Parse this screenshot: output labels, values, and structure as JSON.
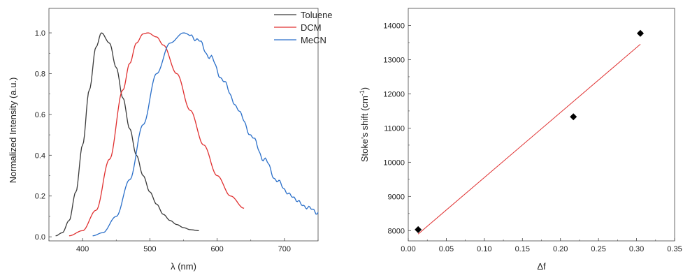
{
  "chart_data": [
    {
      "type": "line",
      "title": "",
      "xlabel": "λ (nm)",
      "ylabel": "Normalized Intensity (a.u.)",
      "xlim": [
        350,
        750
      ],
      "ylim": [
        -0.02,
        1.12
      ],
      "xticks": [
        400,
        500,
        600,
        700
      ],
      "yticks": [
        0.0,
        0.2,
        0.4,
        0.6,
        0.8,
        1.0
      ],
      "legend_position": "top-right",
      "series": [
        {
          "name": "Toluene",
          "color": "#3a3a3a",
          "x": [
            360,
            370,
            380,
            390,
            400,
            410,
            420,
            428,
            440,
            450,
            460,
            470,
            480,
            490,
            500,
            510,
            520,
            530,
            540,
            550,
            560,
            573
          ],
          "y": [
            0.005,
            0.02,
            0.08,
            0.22,
            0.45,
            0.72,
            0.93,
            1.0,
            0.95,
            0.83,
            0.68,
            0.53,
            0.4,
            0.3,
            0.22,
            0.16,
            0.11,
            0.08,
            0.06,
            0.045,
            0.035,
            0.03
          ]
        },
        {
          "name": "DCM",
          "color": "#e03030",
          "x": [
            380,
            400,
            420,
            440,
            460,
            470,
            480,
            490,
            497,
            510,
            520,
            540,
            560,
            580,
            600,
            620,
            640
          ],
          "y": [
            0.005,
            0.03,
            0.13,
            0.38,
            0.72,
            0.85,
            0.95,
            0.995,
            1.0,
            0.98,
            0.94,
            0.8,
            0.62,
            0.45,
            0.3,
            0.2,
            0.14
          ]
        },
        {
          "name": "MeCN",
          "color": "#2a6fc9",
          "x": [
            415,
            430,
            450,
            470,
            490,
            510,
            530,
            550,
            570,
            590,
            610,
            630,
            650,
            670,
            690,
            710,
            730,
            750
          ],
          "y": [
            0.005,
            0.02,
            0.1,
            0.28,
            0.55,
            0.8,
            0.95,
            1.0,
            0.97,
            0.88,
            0.76,
            0.63,
            0.5,
            0.38,
            0.27,
            0.2,
            0.15,
            0.12
          ]
        }
      ]
    },
    {
      "type": "scatter",
      "title": "",
      "xlabel": "Δf",
      "ylabel": "Stoke's shift (cm-1)",
      "xlim": [
        0.0,
        0.35
      ],
      "ylim": [
        7700,
        14500
      ],
      "xticks": [
        "0.00",
        "0.05",
        "0.10",
        "0.15",
        "0.20",
        "0.25",
        "0.30",
        "0.35"
      ],
      "yticks": [
        "8000",
        "9000",
        "10000",
        "11000",
        "12000",
        "13000",
        "14000"
      ],
      "points": [
        {
          "x": 0.013,
          "y": 8030
        },
        {
          "x": 0.217,
          "y": 11330
        },
        {
          "x": 0.305,
          "y": 13770
        }
      ],
      "point_color": "#000000",
      "fit_line": {
        "color": "#e03030",
        "x": [
          0.013,
          0.305
        ],
        "y": [
          7900,
          13450
        ]
      }
    }
  ]
}
